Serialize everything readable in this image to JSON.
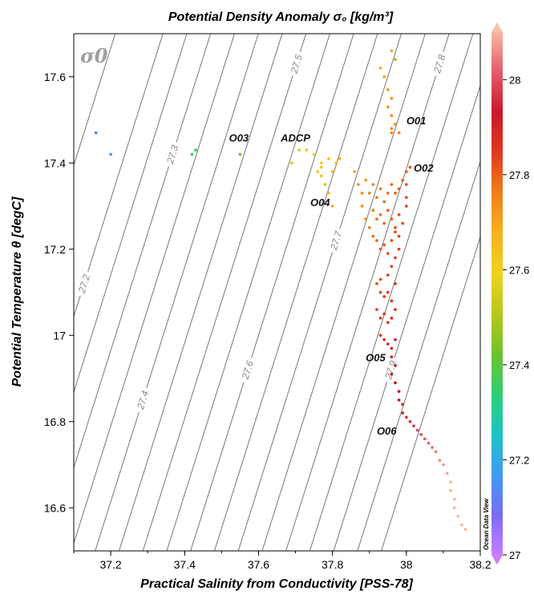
{
  "chart_data": {
    "type": "scatter",
    "title": "Potential Density Anomaly σ₀ [kg/m³]",
    "xlabel": "Practical Salinity from Conductivity [PSS-78]",
    "ylabel": "Potential Temperature θ [degC]",
    "xlim": [
      37.1,
      38.2
    ],
    "ylim": [
      16.5,
      17.7
    ],
    "xticks": [
      37.2,
      37.4,
      37.6,
      37.8,
      38,
      38.2
    ],
    "xtick_labels": [
      "37.2",
      "37.4",
      "37.6",
      "37.8",
      "38",
      "38.2"
    ],
    "yticks": [
      16.6,
      16.8,
      17.0,
      17.2,
      17.4,
      17.6
    ],
    "ytick_labels": [
      "16.6",
      "16.8",
      "17",
      "17.2",
      "17.4",
      "17.6"
    ],
    "inset_label": "σ0",
    "colorbar": {
      "range": [
        27.0,
        28.1
      ],
      "ticks": [
        27,
        27.2,
        27.4,
        27.6,
        27.8,
        28
      ],
      "tick_labels": [
        "27",
        "27.2",
        "27.4",
        "27.6",
        "27.8",
        "28"
      ],
      "colors": [
        "#c77dff",
        "#7a6cf2",
        "#3f9cf0",
        "#1bc4c6",
        "#2ecf72",
        "#6ec22d",
        "#b8c81a",
        "#f0d21e",
        "#f5b21d",
        "#f07f1a",
        "#de3b1d",
        "#c8192a",
        "#e35b6a",
        "#f7b8a2"
      ],
      "credit": "Ocean Data View"
    },
    "isopycnals": [
      {
        "label": "27.2",
        "sigma": 27.2
      },
      {
        "label": "27.3",
        "sigma": 27.3
      },
      {
        "label": "27.4",
        "sigma": 27.4
      },
      {
        "label": "27.5",
        "sigma": 27.5
      },
      {
        "label": "27.6",
        "sigma": 27.6
      },
      {
        "label": "27.7",
        "sigma": 27.7
      },
      {
        "label": "27.8",
        "sigma": 27.8
      },
      {
        "label": "27.9",
        "sigma": 27.9
      }
    ],
    "isopycnal_extra_lines": [
      27.1,
      27.25,
      27.35,
      27.45,
      27.55,
      27.65,
      27.75,
      27.85,
      27.95,
      28.0
    ],
    "station_labels": [
      {
        "text": "O01",
        "x": 38.0,
        "y": 17.49
      },
      {
        "text": "O02",
        "x": 38.02,
        "y": 17.38
      },
      {
        "text": "O03",
        "x": 37.52,
        "y": 17.45
      },
      {
        "text": "ADCP",
        "x": 37.66,
        "y": 17.45
      },
      {
        "text": "O04",
        "x": 37.74,
        "y": 17.3
      },
      {
        "text": "O05",
        "x": 37.89,
        "y": 16.94
      },
      {
        "text": "O06",
        "x": 37.92,
        "y": 16.77
      }
    ],
    "series": [
      {
        "points": [
          [
            37.16,
            17.47
          ],
          [
            37.2,
            17.42
          ],
          [
            37.42,
            17.42
          ],
          [
            37.43,
            17.43
          ],
          [
            37.55,
            17.42
          ],
          [
            37.69,
            17.4
          ],
          [
            37.71,
            17.43
          ],
          [
            37.73,
            17.43
          ],
          [
            37.75,
            17.42
          ],
          [
            37.76,
            17.38
          ],
          [
            37.77,
            17.4
          ],
          [
            37.77,
            17.37
          ],
          [
            37.78,
            17.35
          ],
          [
            37.79,
            17.41
          ],
          [
            37.8,
            17.38
          ],
          [
            37.81,
            17.4
          ],
          [
            37.82,
            17.41
          ],
          [
            37.77,
            17.39
          ],
          [
            37.79,
            17.33
          ],
          [
            37.8,
            17.3
          ],
          [
            37.93,
            17.62
          ],
          [
            37.94,
            17.6
          ],
          [
            37.95,
            17.57
          ],
          [
            37.96,
            17.55
          ],
          [
            37.95,
            17.53
          ],
          [
            37.96,
            17.66
          ],
          [
            37.97,
            17.64
          ],
          [
            37.96,
            17.51
          ],
          [
            37.97,
            17.49
          ],
          [
            37.96,
            17.48
          ],
          [
            37.98,
            17.47
          ],
          [
            37.96,
            17.47
          ],
          [
            37.86,
            17.38
          ],
          [
            37.87,
            17.35
          ],
          [
            37.88,
            17.33
          ],
          [
            37.89,
            17.36
          ],
          [
            37.9,
            17.33
          ],
          [
            37.91,
            17.35
          ],
          [
            37.92,
            17.32
          ],
          [
            37.93,
            17.34
          ],
          [
            37.94,
            17.31
          ],
          [
            37.95,
            17.33
          ],
          [
            37.96,
            17.35
          ],
          [
            37.97,
            17.33
          ],
          [
            37.98,
            17.34
          ],
          [
            37.99,
            17.36
          ],
          [
            38.0,
            17.32
          ],
          [
            37.91,
            17.29
          ],
          [
            37.92,
            17.27
          ],
          [
            37.93,
            17.28
          ],
          [
            37.94,
            17.26
          ],
          [
            37.95,
            17.29
          ],
          [
            37.96,
            17.27
          ],
          [
            37.97,
            17.25
          ],
          [
            37.98,
            17.28
          ],
          [
            37.99,
            17.26
          ],
          [
            38.0,
            17.38
          ],
          [
            38.01,
            17.39
          ],
          [
            38.0,
            17.35
          ],
          [
            38.0,
            17.3
          ],
          [
            37.88,
            17.3
          ],
          [
            37.89,
            17.27
          ],
          [
            37.9,
            17.25
          ],
          [
            37.91,
            17.23
          ],
          [
            37.92,
            17.22
          ],
          [
            37.93,
            17.2
          ],
          [
            37.94,
            17.21
          ],
          [
            37.95,
            17.19
          ],
          [
            37.96,
            17.22
          ],
          [
            37.97,
            17.24
          ],
          [
            37.98,
            17.23
          ],
          [
            37.98,
            17.2
          ],
          [
            37.97,
            17.18
          ],
          [
            37.96,
            17.16
          ],
          [
            37.95,
            17.14
          ],
          [
            37.93,
            17.13
          ],
          [
            37.92,
            17.12
          ],
          [
            37.93,
            17.1
          ],
          [
            37.94,
            17.09
          ],
          [
            37.95,
            17.1
          ],
          [
            37.96,
            17.08
          ],
          [
            37.97,
            17.12
          ],
          [
            37.92,
            17.06
          ],
          [
            37.93,
            17.04
          ],
          [
            37.94,
            17.05
          ],
          [
            37.95,
            17.03
          ],
          [
            37.96,
            17.04
          ],
          [
            37.97,
            17.06
          ],
          [
            37.93,
            17.0
          ],
          [
            37.94,
            16.99
          ],
          [
            37.95,
            16.98
          ],
          [
            37.96,
            16.97
          ],
          [
            37.97,
            16.99
          ],
          [
            37.96,
            16.95
          ],
          [
            37.97,
            16.93
          ],
          [
            37.96,
            16.91
          ],
          [
            37.97,
            16.89
          ],
          [
            37.98,
            16.87
          ],
          [
            37.98,
            16.85
          ],
          [
            37.99,
            16.84
          ],
          [
            37.99,
            16.82
          ],
          [
            38.0,
            16.81
          ],
          [
            38.01,
            16.8
          ],
          [
            38.02,
            16.79
          ],
          [
            38.03,
            16.78
          ],
          [
            38.04,
            16.77
          ],
          [
            38.05,
            16.76
          ],
          [
            38.06,
            16.75
          ],
          [
            38.07,
            16.74
          ],
          [
            38.08,
            16.73
          ],
          [
            38.09,
            16.71
          ],
          [
            38.1,
            16.7
          ],
          [
            38.11,
            16.68
          ],
          [
            38.12,
            16.66
          ],
          [
            38.12,
            16.64
          ],
          [
            38.13,
            16.62
          ],
          [
            38.13,
            16.6
          ],
          [
            38.14,
            16.58
          ],
          [
            38.15,
            16.56
          ],
          [
            38.16,
            16.55
          ]
        ]
      }
    ]
  }
}
